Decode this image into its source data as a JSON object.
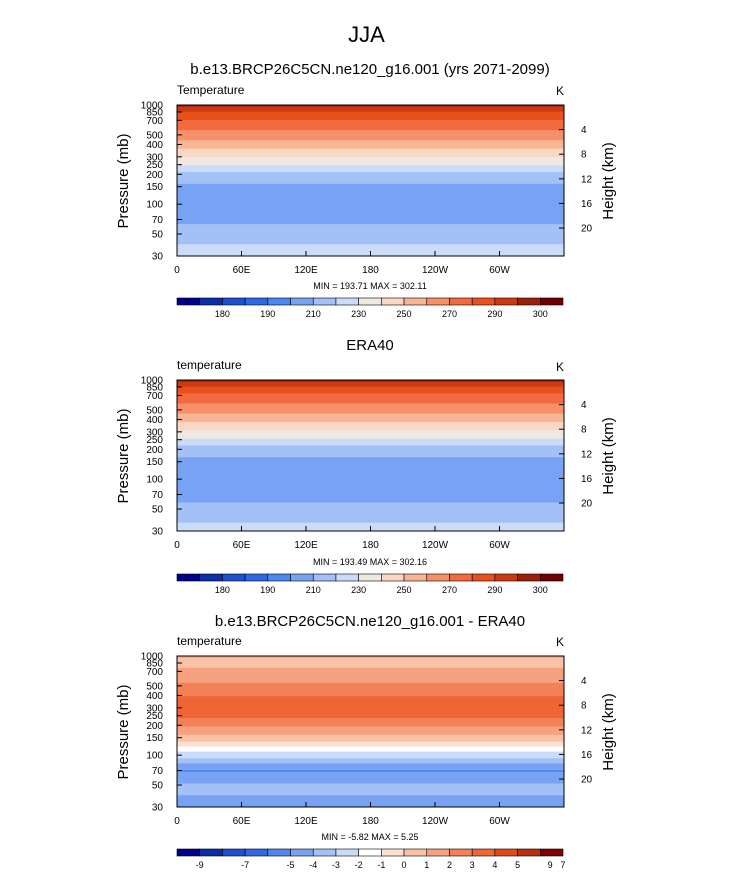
{
  "main_title": "JJA",
  "colors": {
    "temperature_levels": [
      "#00008b",
      "#0a2fa8",
      "#1e50d2",
      "#2e68e6",
      "#4f86ef",
      "#78a2f3",
      "#a3c1f7",
      "#cadcf9",
      "#efe8e2",
      "#fbd6c2",
      "#f8b594",
      "#f59069",
      "#f26b3f",
      "#e8501c",
      "#cc3a12",
      "#9e200c",
      "#700000"
    ],
    "difference_levels": [
      "#00008b",
      "#0a2fa8",
      "#1e50d2",
      "#2e68e6",
      "#4f86ef",
      "#78a2f3",
      "#a3c1f7",
      "#cadcf9",
      "#ffffff",
      "#fde0cf",
      "#f9c2a6",
      "#f6a27f",
      "#f38156",
      "#ef6535",
      "#e04a18",
      "#b8300e",
      "#800000"
    ]
  },
  "chart_data": [
    {
      "type": "heatmap",
      "title": "b.e13.BRCP26C5CN.ne120_g16.001 (yrs 2071-2099)",
      "left_label": "Temperature",
      "units": "K",
      "ylabel": "Pressure (mb)",
      "ylabel_right": "Height (km)",
      "x_ticks": [
        "0",
        "60E",
        "120E",
        "180",
        "120W",
        "60W"
      ],
      "x_tick_values": [
        0,
        60,
        120,
        180,
        240,
        300
      ],
      "xlim": [
        0,
        360
      ],
      "y_ticks": [
        "30",
        "50",
        "70",
        "100",
        "150",
        "200",
        "250",
        "300",
        "400",
        "500",
        "700",
        "850",
        "1000"
      ],
      "y_tick_values": [
        30,
        50,
        70,
        100,
        150,
        200,
        250,
        300,
        400,
        500,
        700,
        850,
        1000
      ],
      "y_scale": "log",
      "ylim": [
        1000,
        30
      ],
      "right_ticks": [
        "20",
        "16",
        "12",
        "8",
        "4"
      ],
      "right_tick_values": [
        20,
        16,
        12,
        8,
        4
      ],
      "levels": [
        175,
        180,
        185,
        190,
        200,
        210,
        220,
        230,
        240,
        250,
        260,
        270,
        280,
        290,
        295,
        300
      ],
      "colorbar_labels": [
        "180",
        "190",
        "210",
        "230",
        "250",
        "270",
        "290",
        "300"
      ],
      "colorbar_label_values": [
        180,
        190,
        210,
        230,
        250,
        270,
        290,
        300
      ],
      "profile_p": [
        30,
        50,
        70,
        100,
        150,
        200,
        250,
        300,
        400,
        500,
        700,
        850,
        1000
      ],
      "profile_t": [
        226,
        215,
        207,
        200,
        208,
        218,
        230,
        240,
        255,
        266,
        280,
        290,
        296
      ],
      "min_max": "MIN = 193.71  MAX = 302.11"
    },
    {
      "type": "heatmap",
      "title": "ERA40",
      "left_label": "temperature",
      "units": "K",
      "ylabel": "Pressure (mb)",
      "ylabel_right": "Height (km)",
      "x_ticks": [
        "0",
        "60E",
        "120E",
        "180",
        "120W",
        "60W"
      ],
      "x_tick_values": [
        0,
        60,
        120,
        180,
        240,
        300
      ],
      "xlim": [
        0,
        360
      ],
      "y_ticks": [
        "30",
        "50",
        "70",
        "100",
        "150",
        "200",
        "250",
        "300",
        "400",
        "500",
        "700",
        "850",
        "1000"
      ],
      "y_tick_values": [
        30,
        50,
        70,
        100,
        150,
        200,
        250,
        300,
        400,
        500,
        700,
        850,
        1000
      ],
      "y_scale": "log",
      "ylim": [
        1000,
        30
      ],
      "right_ticks": [
        "20",
        "16",
        "12",
        "8",
        "4"
      ],
      "right_tick_values": [
        20,
        16,
        12,
        8,
        4
      ],
      "levels": [
        175,
        180,
        185,
        190,
        200,
        210,
        220,
        230,
        240,
        250,
        260,
        270,
        280,
        290,
        295,
        300
      ],
      "colorbar_labels": [
        "180",
        "190",
        "210",
        "230",
        "250",
        "270",
        "290",
        "300"
      ],
      "colorbar_label_values": [
        180,
        190,
        210,
        230,
        250,
        270,
        290,
        300
      ],
      "profile_p": [
        30,
        50,
        70,
        100,
        150,
        200,
        250,
        300,
        400,
        500,
        700,
        850,
        1000
      ],
      "profile_t": [
        224,
        214,
        206,
        200,
        206,
        216,
        228,
        238,
        253,
        264,
        278,
        289,
        296
      ],
      "min_max": "MIN = 193.49  MAX = 302.16"
    },
    {
      "type": "heatmap",
      "title": "b.e13.BRCP26C5CN.ne120_g16.001 - ERA40",
      "left_label": "temperature",
      "units": "K",
      "ylabel": "Pressure (mb)",
      "ylabel_right": "Height (km)",
      "x_ticks": [
        "0",
        "60E",
        "120E",
        "180",
        "120W",
        "60W"
      ],
      "x_tick_values": [
        0,
        60,
        120,
        180,
        240,
        300
      ],
      "xlim": [
        0,
        360
      ],
      "y_ticks": [
        "30",
        "50",
        "70",
        "100",
        "150",
        "200",
        "250",
        "300",
        "400",
        "500",
        "700",
        "850",
        "1000"
      ],
      "y_tick_values": [
        30,
        50,
        70,
        100,
        150,
        200,
        250,
        300,
        400,
        500,
        700,
        850,
        1000
      ],
      "y_scale": "log",
      "ylim": [
        1000,
        30
      ],
      "right_ticks": [
        "20",
        "16",
        "12",
        "8",
        "4"
      ],
      "right_tick_values": [
        20,
        16,
        12,
        8,
        4
      ],
      "levels": [
        -9,
        -8,
        -7,
        -6,
        -5,
        -4,
        -3,
        -2,
        -1,
        0,
        1,
        2,
        3,
        4,
        5,
        6,
        7,
        8
      ],
      "colorbar_labels": [
        "-9",
        "-7",
        "-5",
        "-4",
        "-3",
        "-2",
        "-1",
        "0",
        "1",
        "2",
        "3",
        "4",
        "5",
        "7",
        "9"
      ],
      "colorbar_label_values": [
        -9,
        -7,
        -5,
        -4,
        -3,
        -2,
        -1,
        0,
        1,
        2,
        3,
        4,
        5,
        7,
        9
      ],
      "profile_p": [
        30,
        50,
        70,
        100,
        150,
        200,
        250,
        300,
        400,
        500,
        700,
        850,
        1000
      ],
      "profile_t": [
        -4.2,
        -3.8,
        -5.2,
        -2.5,
        0.6,
        2.2,
        3.4,
        3.6,
        3.0,
        2.2,
        1.4,
        0.6,
        1.2
      ],
      "min_max": "MIN = -5.82  MAX = 5.25"
    }
  ]
}
